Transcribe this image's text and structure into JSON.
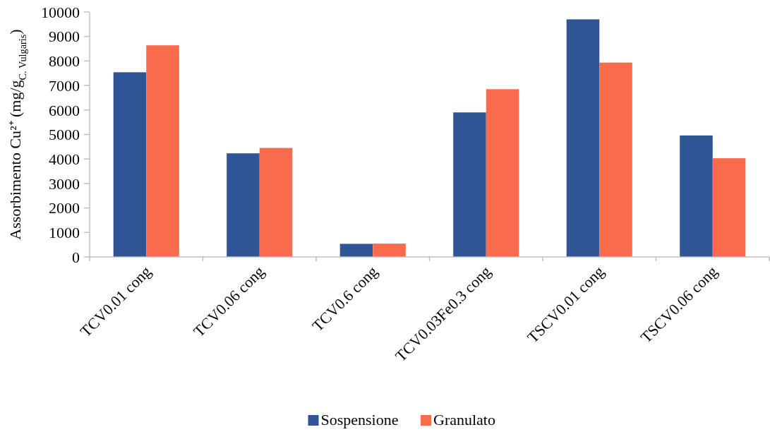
{
  "chart_data": {
    "type": "bar",
    "ylabel": "Assorbimento Cu²⁺ (mg/g$_{C. Vulgaris}$)",
    "categories": [
      "TCV0.01 cong",
      "TCV0.06 cong",
      "TCV0.6 cong",
      "TCV0.03Fe0.3 cong",
      "TSCV0.01 cong",
      "TSCV0.06 cong"
    ],
    "series": [
      {
        "name": "Sospensione",
        "color": "#2f5597",
        "values": [
          7540,
          4230,
          535,
          5900,
          9700,
          4960
        ]
      },
      {
        "name": "Granulato",
        "color": "#f96b4d",
        "values": [
          8640,
          4450,
          545,
          6850,
          7935,
          4030
        ]
      }
    ],
    "ylim": [
      0,
      10000
    ],
    "yticks": [
      0,
      1000,
      2000,
      3000,
      4000,
      5000,
      6000,
      7000,
      8000,
      9000,
      10000
    ],
    "grid": false,
    "legend": "bottom"
  }
}
